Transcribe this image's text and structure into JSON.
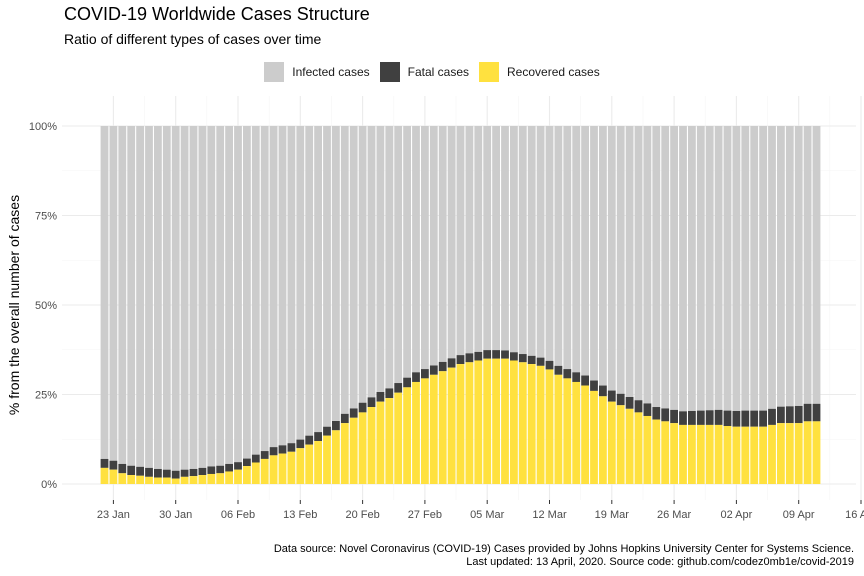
{
  "colors": {
    "infected": "#cccccc",
    "fatal": "#404040",
    "recovered": "#ffe13f",
    "grid_major": "#ebebeb",
    "grid_minor": "#f5f5f5",
    "axis_text": "#4d4d4d"
  },
  "caption": {
    "line1": "Data source: Novel Coronavirus (COVID-19) Cases provided by Johns Hopkins University Center for Systems Science.",
    "line2": "Last updated: 13 April, 2020. Source code: github.com/codez0mb1e/covid-2019"
  },
  "chart_data": {
    "type": "bar",
    "stacked": true,
    "title": "COVID-19 Worldwide Cases Structure",
    "subtitle": "Ratio of different types of cases over time",
    "xlabel": "",
    "ylabel": "% from the overall number of cases",
    "x_start": "2020-01-22",
    "x_end": "2020-04-12",
    "x_ticks": [
      "23 Jan",
      "30 Jan",
      "06 Feb",
      "13 Feb",
      "20 Feb",
      "27 Feb",
      "05 Mar",
      "12 Mar",
      "19 Mar",
      "26 Mar",
      "02 Apr",
      "09 Apr",
      "16 Apr"
    ],
    "x_tick_dates": [
      "2020-01-23",
      "2020-01-30",
      "2020-02-06",
      "2020-02-13",
      "2020-02-20",
      "2020-02-27",
      "2020-03-05",
      "2020-03-12",
      "2020-03-19",
      "2020-03-26",
      "2020-04-02",
      "2020-04-09",
      "2020-04-16"
    ],
    "y_ticks": [
      "0%",
      "25%",
      "50%",
      "75%",
      "100%"
    ],
    "y_tick_values": [
      0,
      25,
      50,
      75,
      100
    ],
    "ylim": [
      0,
      100
    ],
    "legend": {
      "position": "top",
      "entries": [
        "Infected cases",
        "Fatal cases",
        "Recovered cases"
      ]
    },
    "grid": true,
    "series_order": [
      "recovered",
      "fatal",
      "infected"
    ],
    "recovered": [
      4.5,
      4.0,
      3.0,
      2.5,
      2.3,
      2.0,
      1.8,
      1.8,
      1.5,
      2.0,
      2.2,
      2.5,
      2.8,
      3.0,
      3.5,
      4.0,
      5.0,
      6.0,
      7.0,
      8.0,
      8.5,
      9.0,
      10.0,
      11.0,
      12.0,
      13.5,
      15.0,
      17.0,
      18.5,
      20.0,
      21.5,
      23.0,
      24.0,
      25.5,
      27.0,
      28.5,
      29.5,
      30.5,
      31.5,
      32.5,
      33.5,
      34.0,
      34.5,
      35.0,
      35.0,
      35.0,
      34.5,
      34.0,
      33.5,
      33.0,
      32.0,
      30.5,
      29.5,
      28.5,
      27.5,
      26.0,
      24.5,
      23.0,
      22.0,
      21.0,
      20.0,
      19.0,
      18.0,
      17.5,
      17.0,
      16.5,
      16.5,
      16.5,
      16.5,
      16.5,
      16.2,
      16.0,
      16.0,
      16.0,
      16.0,
      16.5,
      17.0,
      17.0,
      17.0,
      17.5,
      17.5
    ],
    "fatal": [
      2.5,
      2.5,
      2.6,
      2.6,
      2.5,
      2.5,
      2.4,
      2.2,
      2.2,
      2.0,
      2.0,
      2.0,
      2.1,
      2.1,
      2.1,
      2.1,
      2.1,
      2.2,
      2.2,
      2.3,
      2.3,
      2.4,
      2.4,
      2.5,
      2.5,
      2.5,
      2.6,
      2.6,
      2.6,
      2.7,
      2.7,
      2.7,
      2.7,
      2.7,
      2.7,
      2.7,
      2.6,
      2.6,
      2.6,
      2.6,
      2.5,
      2.5,
      2.4,
      2.4,
      2.4,
      2.3,
      2.3,
      2.3,
      2.3,
      2.3,
      2.4,
      2.5,
      2.6,
      2.7,
      2.8,
      2.9,
      3.0,
      3.1,
      3.2,
      3.3,
      3.4,
      3.5,
      3.5,
      3.6,
      3.7,
      3.8,
      3.9,
      4.0,
      4.1,
      4.2,
      4.3,
      4.4,
      4.5,
      4.5,
      4.5,
      4.5,
      4.6,
      4.7,
      4.8,
      4.9,
      4.9
    ]
  }
}
